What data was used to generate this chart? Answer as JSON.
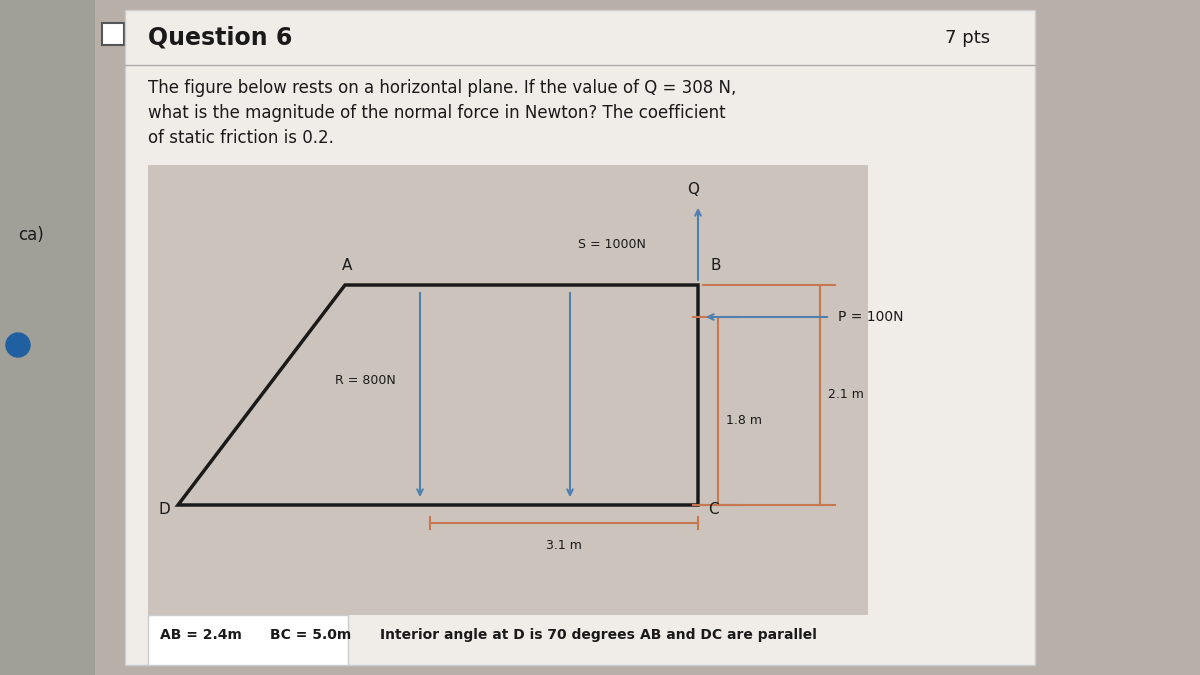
{
  "title": "Question 6",
  "pts_text": "7 pts",
  "problem_text_line1": "The figure below rests on a horizontal plane. If the value of Q = 308 N,",
  "problem_text_line2": "what is the magnitude of the normal force in Newton? The coefficient",
  "problem_text_line3": "of static friction is 0.2.",
  "bg_color": "#b8b0a8",
  "panel_color": "#f0ece8",
  "figure_bg": "#ccc4bc",
  "label_D": "D",
  "label_A": "A",
  "label_B": "B",
  "label_C": "C",
  "label_Q": "Q",
  "R_label": "R = 800N",
  "S_label": "S = 1000N",
  "P_label": "P = 100N",
  "dim_18": "1.8 m",
  "dim_21": "2.1 m",
  "dim_31": "3.1 m",
  "note_AB": "AB = 2.4m",
  "note_BC": "BC = 5.0m",
  "note_angle": "Interior angle at D is 70 degrees",
  "note_parallel": "AB and DC are parallel",
  "shape_color": "#1a1a1a",
  "arrow_color": "#5080b0",
  "dim_color": "#c87850",
  "text_color": "#1a1a1a",
  "sidebar_color": "#888880"
}
